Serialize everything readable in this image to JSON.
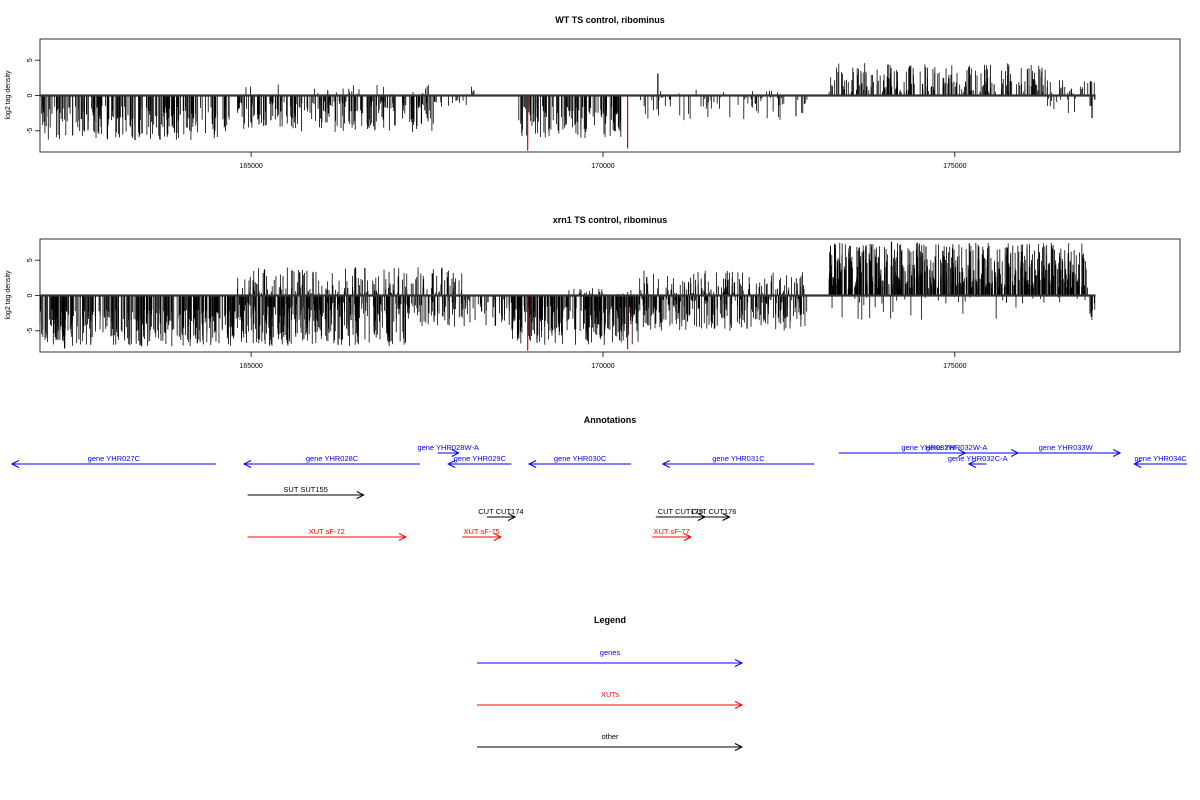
{
  "chart_data": [
    {
      "type": "bar",
      "title": "WT TS control, ribominus",
      "ylabel": "log2 tag density",
      "xlim": [
        162000,
        178200
      ],
      "ylim": [
        -8,
        8
      ],
      "x_ticks": [
        165000,
        170000,
        175000
      ],
      "y_ticks": [
        -5,
        0,
        5
      ],
      "baseline_range": [
        162000,
        177000
      ],
      "regions": [
        {
          "from": 162000,
          "to": 164700,
          "sign": -1,
          "min": 1.5,
          "max": 6.3,
          "density": 220
        },
        {
          "from": 164800,
          "to": 167600,
          "sign": -1,
          "min": 0.8,
          "max": 5.2,
          "density": 230
        },
        {
          "from": 164800,
          "to": 167600,
          "sign": 1,
          "min": 0.2,
          "max": 1.6,
          "density": 25
        },
        {
          "from": 167600,
          "to": 168100,
          "sign": -1,
          "min": 0.2,
          "max": 1.6,
          "density": 15
        },
        {
          "from": 168100,
          "to": 168200,
          "sign": 1,
          "min": 0.2,
          "max": 1.5,
          "density": 4
        },
        {
          "from": 168800,
          "to": 170300,
          "sign": -1,
          "min": 1.5,
          "max": 6.2,
          "density": 130
        },
        {
          "from": 170500,
          "to": 172900,
          "sign": -1,
          "min": 0.3,
          "max": 3.5,
          "density": 70
        },
        {
          "from": 170500,
          "to": 172900,
          "sign": 1,
          "min": 0.2,
          "max": 0.9,
          "density": 10
        },
        {
          "from": 173200,
          "to": 176300,
          "sign": 1,
          "min": 0.5,
          "max": 4.6,
          "density": 220
        },
        {
          "from": 176300,
          "to": 177000,
          "sign": 1,
          "min": 0.3,
          "max": 2.5,
          "density": 25
        },
        {
          "from": 176300,
          "to": 177000,
          "sign": -1,
          "min": 0.2,
          "max": 2.5,
          "density": 15
        }
      ],
      "spikes": [
        {
          "x": 168930,
          "y": -7.8,
          "color": "#d40000"
        },
        {
          "x": 170350,
          "y": -7.5,
          "color": "#d40000"
        },
        {
          "x": 170780,
          "y": 3.1,
          "color": "#000000"
        },
        {
          "x": 163350,
          "y": -6.3,
          "color": "#000000"
        },
        {
          "x": 176950,
          "y": -3.2,
          "color": "#000000"
        }
      ]
    },
    {
      "type": "bar",
      "title": "xrn1 TS control, ribominus",
      "ylabel": "log2 tag density",
      "xlim": [
        162000,
        178200
      ],
      "ylim": [
        -8,
        8
      ],
      "x_ticks": [
        165000,
        170000,
        175000
      ],
      "y_ticks": [
        -5,
        0,
        5
      ],
      "baseline_range": [
        162000,
        177000
      ],
      "regions": [
        {
          "from": 162000,
          "to": 164800,
          "sign": -1,
          "min": 2.0,
          "max": 7.2,
          "density": 320
        },
        {
          "from": 164800,
          "to": 167300,
          "sign": -1,
          "min": 1.0,
          "max": 7.2,
          "density": 330
        },
        {
          "from": 164800,
          "to": 168000,
          "sign": 1,
          "min": 0.3,
          "max": 4.0,
          "density": 170
        },
        {
          "from": 167300,
          "to": 168700,
          "sign": -1,
          "min": 0.5,
          "max": 4.5,
          "density": 90
        },
        {
          "from": 168700,
          "to": 170500,
          "sign": -1,
          "min": 1.5,
          "max": 7.0,
          "density": 260
        },
        {
          "from": 169500,
          "to": 170400,
          "sign": 1,
          "min": 0.2,
          "max": 1.5,
          "density": 20
        },
        {
          "from": 170500,
          "to": 172900,
          "sign": -1,
          "min": 0.5,
          "max": 5.0,
          "density": 240
        },
        {
          "from": 170500,
          "to": 172900,
          "sign": 1,
          "min": 0.3,
          "max": 3.5,
          "density": 120
        },
        {
          "from": 173200,
          "to": 176900,
          "sign": 1,
          "min": 1.0,
          "max": 7.5,
          "density": 600
        },
        {
          "from": 173200,
          "to": 176900,
          "sign": -1,
          "min": 0.2,
          "max": 3.5,
          "density": 40
        },
        {
          "from": 176900,
          "to": 177000,
          "sign": -1,
          "min": 1.0,
          "max": 3.8,
          "density": 10
        }
      ],
      "spikes": [
        {
          "x": 168930,
          "y": -7.8,
          "color": "#d40000"
        },
        {
          "x": 170350,
          "y": -7.6,
          "color": "#d40000"
        },
        {
          "x": 162350,
          "y": -7.5,
          "color": "#000000"
        },
        {
          "x": 174100,
          "y": 7.6,
          "color": "#000000"
        }
      ]
    }
  ],
  "annotations": {
    "title": "Annotations",
    "xlim": [
      162000,
      178200
    ],
    "items": [
      {
        "label": "gene YHR027C",
        "from": 164500,
        "to": 161600,
        "row": 1,
        "color": "#0000ff"
      },
      {
        "label": "gene YHR028C",
        "from": 167400,
        "to": 164900,
        "row": 1,
        "color": "#0000ff"
      },
      {
        "label": "gene YHR028W-A",
        "from": 167650,
        "to": 167950,
        "row": 0,
        "color": "#0000ff"
      },
      {
        "label": "gene YHR029C",
        "from": 168700,
        "to": 167800,
        "row": 1,
        "color": "#0000ff"
      },
      {
        "label": "gene YHR030C",
        "from": 170400,
        "to": 168950,
        "row": 1,
        "color": "#0000ff"
      },
      {
        "label": "gene YHR031C",
        "from": 173000,
        "to": 170850,
        "row": 1,
        "color": "#0000ff"
      },
      {
        "label": "gene YHR032W",
        "from": 173350,
        "to": 175900,
        "row": 0,
        "color": "#0000ff"
      },
      {
        "label": "gene YHR032W-A",
        "from": 174900,
        "to": 175150,
        "row": 0,
        "color": "#0000ff"
      },
      {
        "label": "gene YHR033W",
        "from": 175800,
        "to": 177350,
        "row": 0,
        "color": "#0000ff"
      },
      {
        "label": "gene YHR032C-A",
        "from": 175450,
        "to": 175200,
        "row": 1,
        "color": "#0000ff"
      },
      {
        "label": "gene YHR034C",
        "from": 178300,
        "to": 177550,
        "row": 1,
        "color": "#0000ff"
      },
      {
        "label": "SUT SUT155",
        "from": 164950,
        "to": 166600,
        "row": 2,
        "color": "#000000"
      },
      {
        "label": "CUT CUT174",
        "from": 168350,
        "to": 168750,
        "row": 3,
        "color": "#000000"
      },
      {
        "label": "CUT CUT175",
        "from": 170750,
        "to": 171450,
        "row": 3,
        "color": "#000000"
      },
      {
        "label": "CUT CUT176",
        "from": 171350,
        "to": 171800,
        "row": 3,
        "color": "#000000"
      },
      {
        "label": "XUT sF-72",
        "from": 164950,
        "to": 167200,
        "row": 4,
        "color": "#ff0000"
      },
      {
        "label": "XUT sF-75",
        "from": 168000,
        "to": 168550,
        "row": 4,
        "color": "#ff0000"
      },
      {
        "label": "XUT sF-77",
        "from": 170700,
        "to": 171250,
        "row": 4,
        "color": "#ff0000"
      }
    ]
  },
  "legend": {
    "title": "Legend",
    "items": [
      {
        "label": "genes",
        "color": "#0000ff"
      },
      {
        "label": "XUTs",
        "color": "#ff0000"
      },
      {
        "label": "other",
        "color": "#000000"
      }
    ]
  }
}
